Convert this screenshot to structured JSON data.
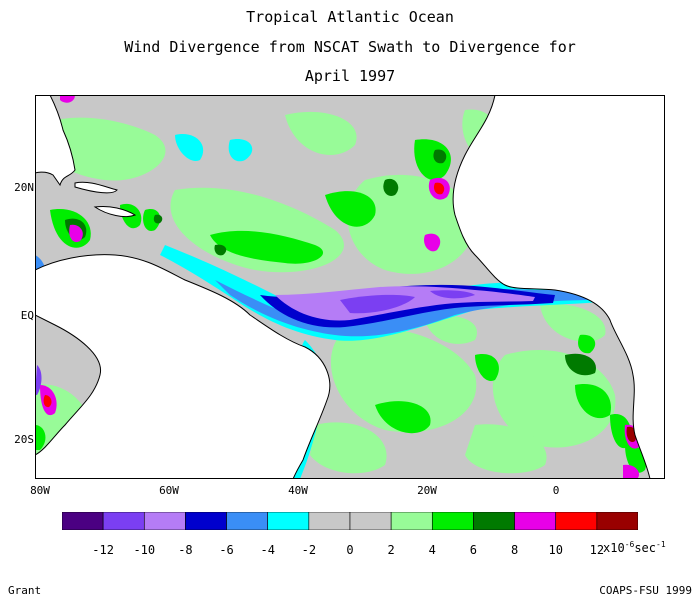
{
  "title": {
    "line1": "Tropical Atlantic Ocean",
    "line2": "Wind Divergence from NSCAT Swath to Divergence for",
    "line3": "April 1997"
  },
  "axes": {
    "x_ticks": [
      "80W",
      "60W",
      "40W",
      "20W",
      "0"
    ],
    "y_ticks": [
      "20N",
      "EQ",
      "20S"
    ]
  },
  "colorbar": {
    "colors": [
      "#4b0082",
      "#7b3ff2",
      "#b57cf6",
      "#0000cd",
      "#3a8ef6",
      "#00ffff",
      "#c8c8c8",
      "#c8c8c8",
      "#98fb98",
      "#00ee00",
      "#007a00",
      "#e800e8",
      "#ff0000",
      "#990000"
    ],
    "labels": [
      "-12",
      "-10",
      "-8",
      "-6",
      "-4",
      "-2",
      "0",
      "2",
      "4",
      "6",
      "8",
      "10",
      "12"
    ],
    "units_prefix": "x10",
    "units_exp": "-6",
    "units_suffix": "sec",
    "units_suffix_exp": "-1"
  },
  "footer": {
    "left": "Grant",
    "right": "COAPS-FSU 1999"
  },
  "colors": {
    "land": "#ffffff",
    "ocean_base": "#c8c8c8",
    "coast": "#000000"
  }
}
